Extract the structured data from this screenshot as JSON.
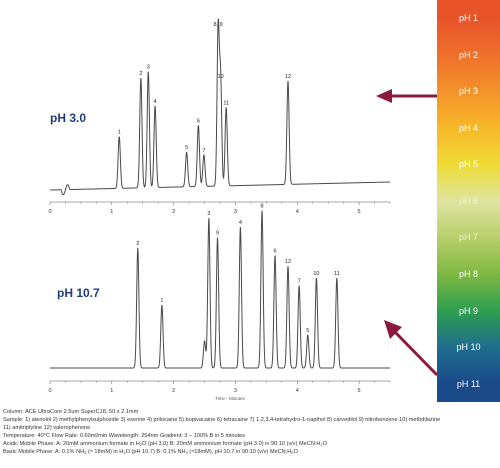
{
  "chart_data": [
    {
      "type": "line",
      "label": "pH 3.0",
      "xlabel": "",
      "xlim": [
        0,
        5.5
      ],
      "x_ticks": [
        "0",
        "1",
        "2",
        "3",
        "4",
        "5"
      ],
      "peaks": [
        {
          "label": "1",
          "rt": 1.12,
          "height": 0.33
        },
        {
          "label": "2",
          "rt": 1.47,
          "height": 0.7
        },
        {
          "label": "3",
          "rt": 1.59,
          "height": 0.74
        },
        {
          "label": "4",
          "rt": 1.7,
          "height": 0.52
        },
        {
          "label": "5",
          "rt": 2.21,
          "height": 0.22
        },
        {
          "label": "6",
          "rt": 2.4,
          "height": 0.39
        },
        {
          "label": "7",
          "rt": 2.49,
          "height": 0.2
        },
        {
          "label": "8, 9",
          "rt": 2.72,
          "height": 1.0
        },
        {
          "label": "10",
          "rt": 2.76,
          "height": 0.67
        },
        {
          "label": "11",
          "rt": 2.85,
          "height": 0.5
        },
        {
          "label": "12",
          "rt": 3.85,
          "height": 0.66
        }
      ]
    },
    {
      "type": "line",
      "label": "pH 10.7",
      "xlabel": "Time - Minutes",
      "xlim": [
        0,
        5.5
      ],
      "x_ticks": [
        "0",
        "1",
        "2",
        "3",
        "4",
        "5"
      ],
      "peaks": [
        {
          "label": "2",
          "rt": 1.42,
          "height": 0.8
        },
        {
          "label": "1",
          "rt": 1.81,
          "height": 0.42
        },
        {
          "label": "",
          "rt": 2.5,
          "height": 0.18
        },
        {
          "label": "3",
          "rt": 2.57,
          "height": 1.0
        },
        {
          "label": "9",
          "rt": 2.71,
          "height": 0.87
        },
        {
          "label": "4",
          "rt": 3.08,
          "height": 0.94
        },
        {
          "label": "8",
          "rt": 3.43,
          "height": 1.05
        },
        {
          "label": "6",
          "rt": 3.64,
          "height": 0.75
        },
        {
          "label": "12",
          "rt": 3.85,
          "height": 0.68
        },
        {
          "label": "7",
          "rt": 4.03,
          "height": 0.55
        },
        {
          "label": "5",
          "rt": 4.17,
          "height": 0.22
        },
        {
          "label": "10",
          "rt": 4.31,
          "height": 0.6
        },
        {
          "label": "11",
          "rt": 4.64,
          "height": 0.6
        }
      ]
    }
  ],
  "colors": {
    "trace": "#4a4a4a",
    "label_text": "#1f3d7a",
    "arrow": "#8b1a3c",
    "ph_bands": [
      "#e8532a",
      "#ee6f2b",
      "#f3922a",
      "#f6b828",
      "#eedb34",
      "#dfe4a0",
      "#b8cf6a",
      "#7db742",
      "#2f9e4f",
      "#1e6e8e",
      "#1b4a8a"
    ]
  },
  "ph_scale": [
    "pH 1",
    "pH 2",
    "pH 3",
    "pH 4",
    "pH 5",
    "pH 6",
    "pH 7",
    "pH 8",
    "pH 9",
    "pH 10",
    "pH 11"
  ],
  "footer": {
    "column": "Column: ACE UltraCore 2.5um SuperC18, 50 x 2.1mm",
    "sample_1": "Sample: 1) atenolol   2) methylphenylsulphoxide   3) eserine   4) prilocaine   5) bupivacaine   6) tetracaine   7) 1,2,3,4-tetrahydro-1-napthol   8) carvedilol   9) nitrobenzene   10) methdilazine",
    "sample_2": "11) amitriptyline   12) valerophenone",
    "conditions": "Temperature: 40°C     Flow Rate: 0.60ml/min     Wavelength: 254nm     Gradient: 3 – 100% B in 5 minutes",
    "acidic_a": "Acidic Mobile Phase: A: 20mM ammonium formate in H",
    "acidic_a2": "O (pH 3.0)     B: 20mM ammonium formate (pH 3.0) in 90:10 (v/v) MeCN:H",
    "acidic_a3": "O",
    "basic_a": "Basic Mobile Phase: A: 0.1% NH",
    "basic_a2": " (≈ 18mM) in H",
    "basic_a3": "O (pH 10.7)      B: 0.1% NH",
    "basic_a4": " (≈18mM), pH 10.7 in 90:10 (v/v) MeCN:H",
    "basic_a5": "O",
    "sub_2": "2",
    "sub_3": "3"
  }
}
